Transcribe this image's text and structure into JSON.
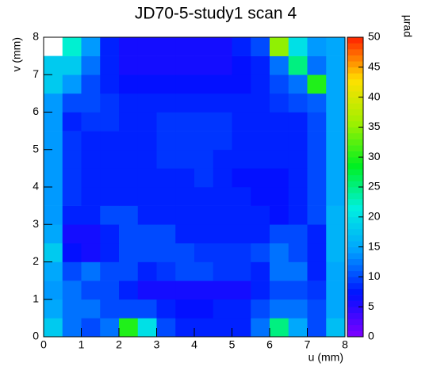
{
  "chart_data": {
    "type": "heatmap",
    "title": "JD70-5-study1 scan 4",
    "x_label": "u (mm)",
    "y_label": "v (mm)",
    "z_label": "µrad",
    "x": [
      0.25,
      0.75,
      1.25,
      1.75,
      2.25,
      2.75,
      3.25,
      3.75,
      4.25,
      4.75,
      5.25,
      5.75,
      6.25,
      6.75,
      7.25,
      7.75
    ],
    "y": [
      0.25,
      0.75,
      1.25,
      1.75,
      2.25,
      2.75,
      3.25,
      3.75,
      4.25,
      4.75,
      5.25,
      5.75,
      6.25,
      6.75,
      7.25,
      7.75
    ],
    "z": [
      [
        18,
        12,
        10,
        12,
        30,
        20,
        10,
        8,
        8,
        8,
        8,
        12,
        25,
        15,
        10,
        17
      ],
      [
        15,
        12,
        12,
        10,
        10,
        10,
        8,
        7,
        7,
        8,
        8,
        10,
        12,
        12,
        10,
        15
      ],
      [
        14,
        12,
        10,
        10,
        8,
        6,
        6,
        6,
        6,
        6,
        6,
        8,
        10,
        10,
        9,
        15
      ],
      [
        15,
        10,
        12,
        10,
        10,
        8,
        9,
        10,
        10,
        9,
        9,
        8,
        12,
        12,
        8,
        15
      ],
      [
        18,
        7,
        6,
        8,
        10,
        10,
        10,
        10,
        9,
        9,
        9,
        10,
        12,
        10,
        8,
        16
      ],
      [
        15,
        6,
        6,
        8,
        10,
        10,
        10,
        8,
        8,
        8,
        8,
        8,
        10,
        10,
        8,
        16
      ],
      [
        14,
        8,
        8,
        10,
        10,
        8,
        8,
        8,
        8,
        8,
        8,
        8,
        7,
        8,
        10,
        16
      ],
      [
        14,
        9,
        8,
        8,
        8,
        8,
        8,
        8,
        8,
        8,
        8,
        7,
        7,
        8,
        10,
        15
      ],
      [
        14,
        9,
        8,
        8,
        8,
        8,
        8,
        8,
        9,
        8,
        7,
        7,
        7,
        8,
        10,
        15
      ],
      [
        14,
        9,
        8,
        8,
        8,
        8,
        9,
        9,
        9,
        8,
        8,
        8,
        8,
        8,
        10,
        15
      ],
      [
        14,
        9,
        8,
        8,
        8,
        8,
        9,
        9,
        9,
        9,
        8,
        8,
        8,
        8,
        10,
        15
      ],
      [
        14,
        8,
        9,
        9,
        8,
        8,
        9,
        9,
        9,
        9,
        8,
        8,
        8,
        8,
        10,
        15
      ],
      [
        14,
        10,
        10,
        9,
        8,
        8,
        8,
        8,
        8,
        8,
        8,
        8,
        9,
        10,
        11,
        15
      ],
      [
        18,
        14,
        10,
        8,
        7,
        7,
        7,
        7,
        7,
        7,
        7,
        8,
        10,
        12,
        30,
        15
      ],
      [
        18,
        18,
        12,
        8,
        6,
        6,
        6,
        6,
        6,
        6,
        7,
        8,
        12,
        25,
        12,
        15
      ],
      [
        null,
        22,
        14,
        8,
        6,
        6,
        6,
        6,
        6,
        6,
        8,
        10,
        35,
        20,
        14,
        15
      ]
    ],
    "xlim": [
      0,
      8
    ],
    "ylim": [
      0,
      8
    ],
    "zlim": [
      0,
      50
    ],
    "xticks": [
      0,
      1,
      2,
      3,
      4,
      5,
      6,
      7,
      8
    ],
    "yticks": [
      0,
      1,
      2,
      3,
      4,
      5,
      6,
      7,
      8
    ],
    "zticks": [
      0,
      5,
      10,
      15,
      20,
      25,
      30,
      35,
      40,
      45,
      50
    ],
    "colorscale": [
      "#8000ff",
      "#0010ff",
      "#00a0ff",
      "#00f0e0",
      "#00f020",
      "#a0f000",
      "#ffe000",
      "#ff2000"
    ]
  }
}
